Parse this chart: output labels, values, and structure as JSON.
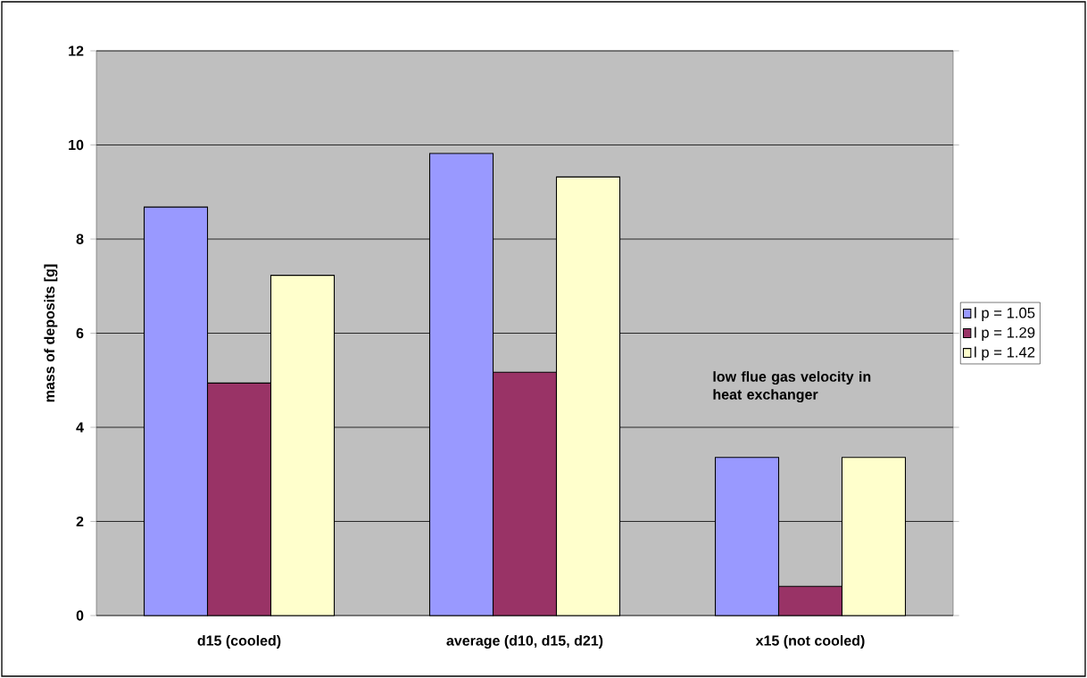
{
  "chart_data": {
    "type": "bar",
    "ylabel": "mass of deposits [g]",
    "categories": [
      "d15 (cooled)",
      "average (d10, d15, d21)",
      "x15 (not cooled)"
    ],
    "series": [
      {
        "name": "l p = 1.05",
        "color": "#9999ff",
        "values": [
          8.68,
          9.82,
          3.36
        ]
      },
      {
        "name": "l p = 1.29",
        "color": "#993366",
        "values": [
          4.94,
          5.17,
          0.62
        ]
      },
      {
        "name": "l p = 1.42",
        "color": "#ffffcc",
        "values": [
          7.23,
          9.32,
          3.36
        ]
      }
    ],
    "ylim": [
      0,
      12
    ],
    "yticks": [
      0,
      2,
      4,
      6,
      8,
      10,
      12
    ],
    "grid": "y",
    "legend": "right",
    "annotations": [
      "low flue gas velocity in heat exchanger"
    ]
  }
}
